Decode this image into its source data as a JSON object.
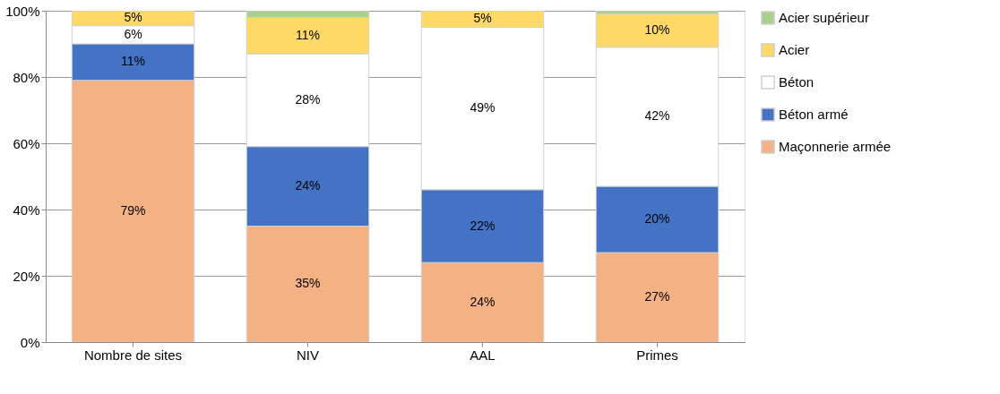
{
  "chart_data": {
    "type": "bar",
    "stacked": true,
    "categories": [
      "Nombre de sites",
      "NIV",
      "AAL",
      "Primes"
    ],
    "series": [
      {
        "name": "Maçonnerie armée",
        "color": "#f4b183",
        "values": [
          79,
          35,
          24,
          27
        ],
        "value_labels": [
          "79%",
          "35%",
          "24%",
          "27%"
        ]
      },
      {
        "name": "Béton armé",
        "color": "#4472c4",
        "values": [
          11,
          24,
          22,
          20
        ],
        "value_labels": [
          "11%",
          "24%",
          "22%",
          "20%"
        ]
      },
      {
        "name": "Béton",
        "color": "#ffffff",
        "values": [
          5.5,
          28,
          49,
          42
        ],
        "value_labels": [
          "6%",
          "28%",
          "49%",
          "42%"
        ]
      },
      {
        "name": "Acier",
        "color": "#ffd966",
        "values": [
          4.5,
          11,
          5,
          10
        ],
        "value_labels": [
          "5%",
          "11%",
          "5%",
          "10%"
        ]
      },
      {
        "name": "Acier supérieur",
        "color": "#a9d18e",
        "values": [
          null,
          2,
          null,
          1
        ],
        "value_labels": [
          null,
          null,
          null,
          null
        ]
      }
    ],
    "ylim": [
      0,
      100
    ],
    "yticks": [
      {
        "value": 0,
        "label": "0%"
      },
      {
        "value": 20,
        "label": "20%"
      },
      {
        "value": 40,
        "label": "40%"
      },
      {
        "value": 60,
        "label": "60%"
      },
      {
        "value": 80,
        "label": "80%"
      },
      {
        "value": 100,
        "label": "100%"
      }
    ],
    "grid": "y",
    "legend": "right"
  }
}
